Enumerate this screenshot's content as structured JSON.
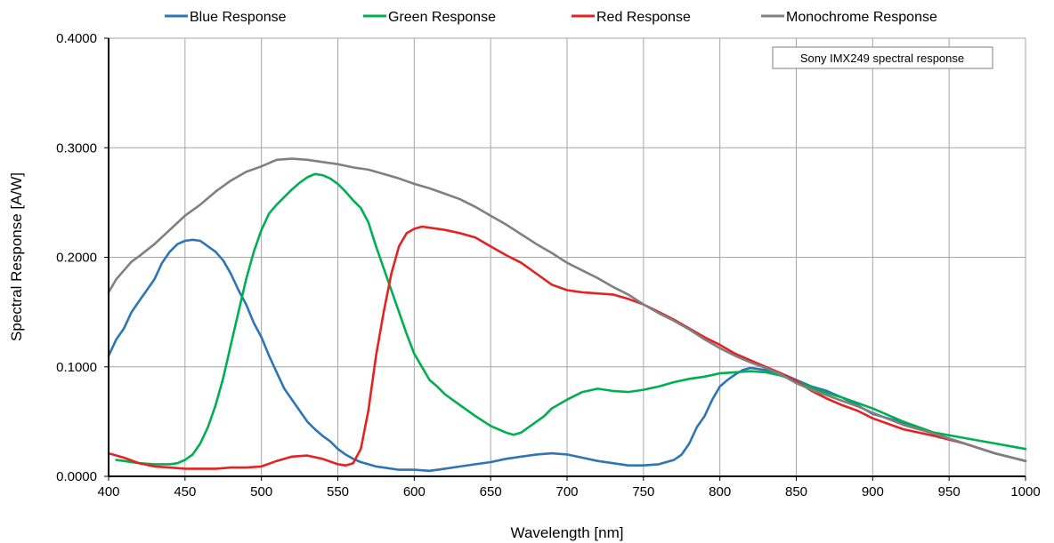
{
  "chart_data": {
    "type": "line",
    "xlabel": "Wavelength [nm]",
    "ylabel": "Spectral Response [A/W]",
    "xlim": [
      400,
      1000
    ],
    "ylim": [
      0,
      0.4
    ],
    "x_ticks": [
      400,
      450,
      500,
      550,
      600,
      650,
      700,
      750,
      800,
      850,
      900,
      950,
      1000
    ],
    "x_tick_labels": [
      "400",
      "450",
      "500",
      "550",
      "600",
      "650",
      "700",
      "750",
      "800",
      "850",
      "900",
      "950",
      "1000"
    ],
    "y_ticks": [
      0,
      0.1,
      0.2,
      0.3,
      0.4
    ],
    "y_tick_labels": [
      "0.0000",
      "0.1000",
      "0.2000",
      "0.3000",
      "0.4000"
    ],
    "grid": true,
    "legend_position": "top",
    "annotation": "Sony IMX249 spectral response",
    "series": [
      {
        "name": "Blue Response",
        "color": "#2e75b6",
        "x": [
          400,
          405,
          410,
          415,
          420,
          425,
          430,
          435,
          440,
          445,
          450,
          455,
          460,
          465,
          470,
          475,
          480,
          485,
          490,
          495,
          500,
          505,
          510,
          515,
          520,
          525,
          530,
          535,
          540,
          545,
          550,
          555,
          560,
          565,
          570,
          575,
          580,
          590,
          600,
          610,
          620,
          630,
          640,
          650,
          660,
          670,
          680,
          690,
          700,
          710,
          720,
          730,
          740,
          750,
          760,
          770,
          775,
          780,
          785,
          790,
          795,
          800,
          805,
          810,
          815,
          820,
          830,
          840,
          850,
          860,
          870,
          880,
          890,
          900,
          920,
          940,
          960,
          980,
          1000
        ],
        "y": [
          0.11,
          0.125,
          0.135,
          0.15,
          0.16,
          0.17,
          0.18,
          0.195,
          0.205,
          0.212,
          0.215,
          0.216,
          0.215,
          0.21,
          0.205,
          0.197,
          0.185,
          0.17,
          0.157,
          0.14,
          0.127,
          0.11,
          0.095,
          0.08,
          0.07,
          0.06,
          0.05,
          0.043,
          0.037,
          0.032,
          0.025,
          0.02,
          0.016,
          0.013,
          0.011,
          0.009,
          0.008,
          0.006,
          0.006,
          0.005,
          0.007,
          0.009,
          0.011,
          0.013,
          0.016,
          0.018,
          0.02,
          0.021,
          0.02,
          0.017,
          0.014,
          0.012,
          0.01,
          0.01,
          0.011,
          0.015,
          0.02,
          0.03,
          0.045,
          0.055,
          0.07,
          0.082,
          0.088,
          0.093,
          0.097,
          0.099,
          0.097,
          0.094,
          0.088,
          0.082,
          0.078,
          0.072,
          0.065,
          0.057,
          0.049,
          0.039,
          0.03,
          0.021,
          0.014
        ]
      },
      {
        "name": "Green Response",
        "color": "#00b050",
        "x": [
          405,
          410,
          420,
          430,
          440,
          445,
          450,
          455,
          460,
          465,
          470,
          475,
          480,
          485,
          490,
          495,
          500,
          505,
          510,
          515,
          520,
          525,
          530,
          535,
          540,
          545,
          550,
          555,
          560,
          565,
          570,
          575,
          580,
          585,
          590,
          595,
          600,
          605,
          610,
          615,
          620,
          630,
          640,
          650,
          660,
          665,
          670,
          675,
          680,
          685,
          690,
          700,
          710,
          720,
          730,
          740,
          750,
          760,
          770,
          780,
          790,
          800,
          810,
          820,
          830,
          840,
          850,
          860,
          870,
          880,
          890,
          900,
          920,
          940,
          960,
          980,
          1000
        ],
        "y": [
          0.015,
          0.014,
          0.012,
          0.011,
          0.011,
          0.012,
          0.015,
          0.02,
          0.03,
          0.045,
          0.065,
          0.09,
          0.12,
          0.15,
          0.18,
          0.205,
          0.225,
          0.24,
          0.248,
          0.255,
          0.262,
          0.268,
          0.273,
          0.276,
          0.275,
          0.272,
          0.267,
          0.26,
          0.252,
          0.245,
          0.232,
          0.21,
          0.19,
          0.17,
          0.15,
          0.13,
          0.112,
          0.1,
          0.088,
          0.082,
          0.075,
          0.065,
          0.055,
          0.046,
          0.04,
          0.038,
          0.04,
          0.045,
          0.05,
          0.055,
          0.062,
          0.07,
          0.077,
          0.08,
          0.078,
          0.077,
          0.079,
          0.082,
          0.086,
          0.089,
          0.091,
          0.094,
          0.095,
          0.096,
          0.095,
          0.092,
          0.087,
          0.081,
          0.076,
          0.072,
          0.067,
          0.062,
          0.05,
          0.04,
          0.035,
          0.03,
          0.025
        ]
      },
      {
        "name": "Red Response",
        "color": "#e52222",
        "x": [
          400,
          410,
          420,
          430,
          440,
          450,
          460,
          470,
          480,
          490,
          500,
          510,
          520,
          530,
          540,
          550,
          555,
          560,
          565,
          570,
          575,
          580,
          585,
          590,
          595,
          600,
          605,
          610,
          620,
          630,
          640,
          650,
          660,
          670,
          680,
          690,
          700,
          710,
          720,
          730,
          740,
          750,
          760,
          770,
          780,
          790,
          800,
          810,
          820,
          830,
          840,
          850,
          860,
          870,
          880,
          890,
          900,
          920,
          940,
          960,
          980,
          1000
        ],
        "y": [
          0.021,
          0.017,
          0.012,
          0.009,
          0.008,
          0.007,
          0.007,
          0.007,
          0.008,
          0.008,
          0.009,
          0.014,
          0.018,
          0.019,
          0.016,
          0.011,
          0.01,
          0.012,
          0.025,
          0.06,
          0.11,
          0.15,
          0.185,
          0.21,
          0.222,
          0.226,
          0.228,
          0.227,
          0.225,
          0.222,
          0.218,
          0.21,
          0.202,
          0.195,
          0.185,
          0.175,
          0.17,
          0.168,
          0.167,
          0.166,
          0.162,
          0.157,
          0.15,
          0.143,
          0.135,
          0.127,
          0.12,
          0.112,
          0.106,
          0.1,
          0.094,
          0.087,
          0.078,
          0.071,
          0.065,
          0.06,
          0.053,
          0.043,
          0.037,
          0.03,
          0.021,
          0.014
        ]
      },
      {
        "name": "Monochrome Response",
        "color": "#808080",
        "x": [
          400,
          405,
          410,
          415,
          420,
          430,
          440,
          450,
          460,
          470,
          480,
          490,
          500,
          510,
          520,
          530,
          540,
          550,
          560,
          570,
          580,
          590,
          600,
          610,
          620,
          630,
          640,
          650,
          660,
          670,
          680,
          690,
          700,
          710,
          720,
          730,
          740,
          750,
          760,
          770,
          780,
          790,
          800,
          810,
          820,
          830,
          840,
          850,
          860,
          870,
          880,
          890,
          900,
          920,
          940,
          960,
          980,
          1000
        ],
        "y": [
          0.168,
          0.18,
          0.188,
          0.196,
          0.201,
          0.212,
          0.225,
          0.238,
          0.248,
          0.26,
          0.27,
          0.278,
          0.283,
          0.289,
          0.29,
          0.289,
          0.287,
          0.285,
          0.282,
          0.28,
          0.276,
          0.272,
          0.267,
          0.263,
          0.258,
          0.253,
          0.246,
          0.238,
          0.23,
          0.221,
          0.212,
          0.204,
          0.195,
          0.188,
          0.181,
          0.173,
          0.166,
          0.157,
          0.149,
          0.142,
          0.134,
          0.125,
          0.117,
          0.11,
          0.104,
          0.099,
          0.093,
          0.085,
          0.079,
          0.074,
          0.069,
          0.064,
          0.058,
          0.047,
          0.039,
          0.03,
          0.021,
          0.014
        ]
      }
    ]
  }
}
